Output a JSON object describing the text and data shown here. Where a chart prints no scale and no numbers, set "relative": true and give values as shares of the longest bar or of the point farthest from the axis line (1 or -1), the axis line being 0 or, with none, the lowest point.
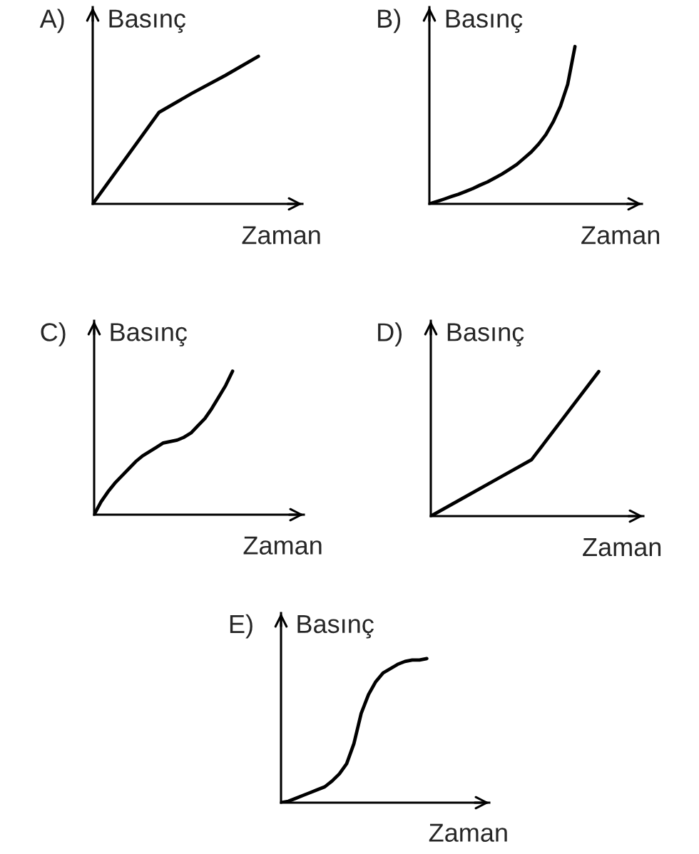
{
  "chart_data": [
    {
      "type": "line",
      "title": "A)",
      "ylabel": "Basınç",
      "xlabel": "Zaman",
      "relative": true,
      "categories": [
        null,
        null,
        null,
        null,
        null,
        null
      ],
      "series": [
        {
          "color": "#000000",
          "values": [
            0,
            0.31,
            0.62,
            0.75,
            0.87,
            1
          ]
        }
      ]
    },
    {
      "type": "line",
      "title": "B)",
      "ylabel": "Basınç",
      "xlabel": "Zaman",
      "relative": true,
      "categories": [
        null,
        null,
        null,
        null,
        null,
        null,
        null,
        null,
        null,
        null,
        null,
        null,
        null,
        null,
        null,
        null,
        null,
        null,
        null,
        null,
        null
      ],
      "series": [
        {
          "color": "#000000",
          "values": [
            0,
            0.015,
            0.03,
            0.046,
            0.061,
            0.079,
            0.098,
            0.12,
            0.14,
            0.165,
            0.19,
            0.22,
            0.25,
            0.29,
            0.33,
            0.38,
            0.44,
            0.52,
            0.62,
            0.76,
            1
          ]
        }
      ]
    },
    {
      "type": "line",
      "title": "C)",
      "ylabel": "Basınç",
      "xlabel": "Zaman",
      "relative": true,
      "categories": [
        null,
        null,
        null,
        null,
        null,
        null,
        null,
        null,
        null,
        null,
        null,
        null,
        null,
        null,
        null,
        null,
        null,
        null,
        null,
        null,
        null
      ],
      "series": [
        {
          "color": "#000000",
          "values": [
            0,
            0.09,
            0.16,
            0.22,
            0.27,
            0.32,
            0.37,
            0.41,
            0.44,
            0.47,
            0.5,
            0.51,
            0.52,
            0.54,
            0.57,
            0.62,
            0.67,
            0.74,
            0.82,
            0.9,
            1
          ]
        }
      ]
    },
    {
      "type": "line",
      "title": "D)",
      "ylabel": "Basınç",
      "xlabel": "Zaman",
      "relative": true,
      "categories": [
        null,
        null,
        null,
        null,
        null,
        null
      ],
      "series": [
        {
          "color": "#000000",
          "values": [
            0,
            0.13,
            0.26,
            0.39,
            0.695,
            1
          ]
        }
      ]
    },
    {
      "type": "line",
      "title": "E)",
      "ylabel": "Basınç",
      "xlabel": "Zaman",
      "relative": true,
      "categories": [
        null,
        null,
        null,
        null,
        null,
        null,
        null,
        null,
        null,
        null,
        null,
        null,
        null,
        null,
        null,
        null,
        null,
        null,
        null,
        null,
        null
      ],
      "series": [
        {
          "color": "#000000",
          "values": [
            0,
            0.01,
            0.03,
            0.05,
            0.07,
            0.09,
            0.11,
            0.15,
            0.2,
            0.27,
            0.41,
            0.62,
            0.75,
            0.84,
            0.9,
            0.93,
            0.96,
            0.98,
            0.99,
            0.99,
            1
          ]
        }
      ]
    }
  ]
}
